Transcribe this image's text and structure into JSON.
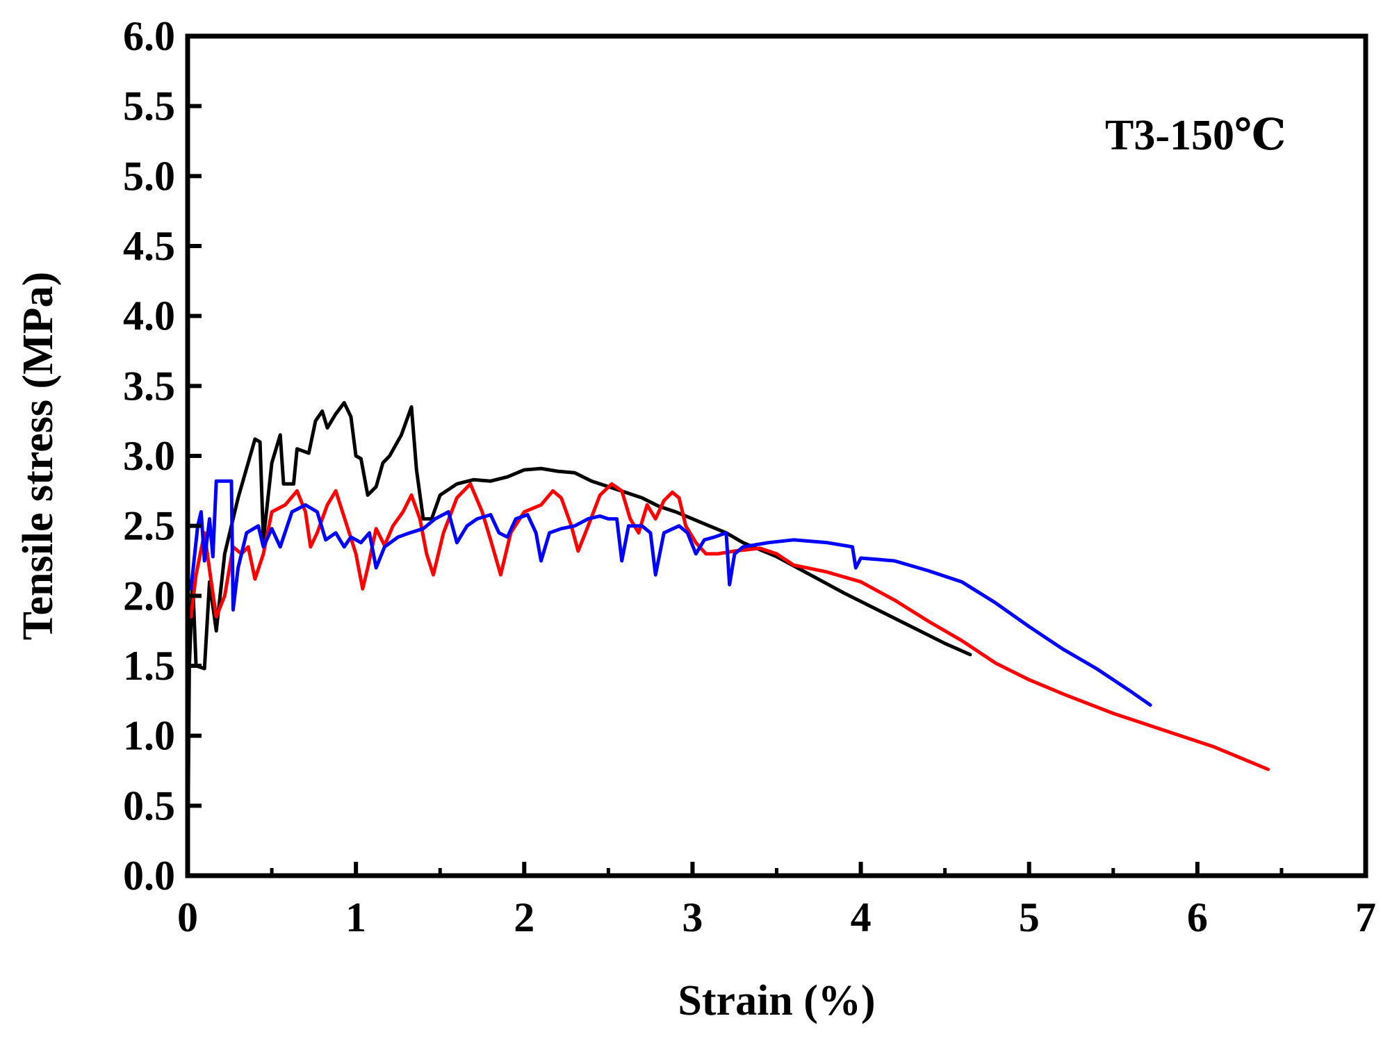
{
  "chart_data": {
    "type": "line",
    "title": "",
    "xlabel": "Strain (%)",
    "ylabel": "Tensile stress (MPa)",
    "annotation": "T3-150℃",
    "xlim": [
      0,
      7
    ],
    "ylim": [
      0,
      6
    ],
    "x_ticks": [
      "0",
      "1",
      "2",
      "3",
      "4",
      "5",
      "6",
      "7"
    ],
    "y_ticks": [
      "0.0",
      "0.5",
      "1.0",
      "1.5",
      "2.0",
      "2.5",
      "3.0",
      "3.5",
      "4.0",
      "4.5",
      "5.0",
      "5.5",
      "6.0"
    ],
    "grid": false,
    "legend": false,
    "series": [
      {
        "color": "#000000",
        "points": [
          [
            0,
            0
          ],
          [
            0.01,
            1.5
          ],
          [
            0.03,
            2.1
          ],
          [
            0.05,
            1.5
          ],
          [
            0.1,
            1.48
          ],
          [
            0.13,
            2.1
          ],
          [
            0.17,
            1.75
          ],
          [
            0.22,
            2.3
          ],
          [
            0.3,
            2.7
          ],
          [
            0.4,
            3.12
          ],
          [
            0.43,
            3.1
          ],
          [
            0.45,
            2.4
          ],
          [
            0.5,
            2.95
          ],
          [
            0.55,
            3.15
          ],
          [
            0.57,
            2.8
          ],
          [
            0.63,
            2.8
          ],
          [
            0.65,
            3.05
          ],
          [
            0.72,
            3.02
          ],
          [
            0.76,
            3.25
          ],
          [
            0.8,
            3.32
          ],
          [
            0.83,
            3.2
          ],
          [
            0.88,
            3.3
          ],
          [
            0.93,
            3.38
          ],
          [
            0.97,
            3.28
          ],
          [
            1.0,
            3.0
          ],
          [
            1.03,
            2.98
          ],
          [
            1.07,
            2.72
          ],
          [
            1.12,
            2.78
          ],
          [
            1.16,
            2.95
          ],
          [
            1.2,
            3.0
          ],
          [
            1.27,
            3.15
          ],
          [
            1.33,
            3.35
          ],
          [
            1.36,
            2.9
          ],
          [
            1.4,
            2.55
          ],
          [
            1.45,
            2.55
          ],
          [
            1.5,
            2.72
          ],
          [
            1.6,
            2.8
          ],
          [
            1.7,
            2.83
          ],
          [
            1.8,
            2.82
          ],
          [
            1.9,
            2.85
          ],
          [
            2.0,
            2.9
          ],
          [
            2.1,
            2.91
          ],
          [
            2.2,
            2.89
          ],
          [
            2.3,
            2.88
          ],
          [
            2.4,
            2.82
          ],
          [
            2.5,
            2.78
          ],
          [
            2.6,
            2.74
          ],
          [
            2.7,
            2.7
          ],
          [
            2.8,
            2.64
          ],
          [
            2.9,
            2.6
          ],
          [
            3.0,
            2.55
          ],
          [
            3.1,
            2.5
          ],
          [
            3.2,
            2.45
          ],
          [
            3.3,
            2.38
          ],
          [
            3.5,
            2.28
          ],
          [
            3.7,
            2.15
          ],
          [
            3.9,
            2.02
          ],
          [
            4.1,
            1.9
          ],
          [
            4.3,
            1.78
          ],
          [
            4.5,
            1.66
          ],
          [
            4.65,
            1.58
          ]
        ]
      },
      {
        "color": "#ff0000",
        "points": [
          [
            0.02,
            1.85
          ],
          [
            0.05,
            2.15
          ],
          [
            0.1,
            2.45
          ],
          [
            0.14,
            2.1
          ],
          [
            0.17,
            1.85
          ],
          [
            0.22,
            2.0
          ],
          [
            0.27,
            2.35
          ],
          [
            0.32,
            2.3
          ],
          [
            0.36,
            2.35
          ],
          [
            0.4,
            2.12
          ],
          [
            0.45,
            2.3
          ],
          [
            0.5,
            2.6
          ],
          [
            0.58,
            2.65
          ],
          [
            0.65,
            2.75
          ],
          [
            0.7,
            2.6
          ],
          [
            0.73,
            2.35
          ],
          [
            0.77,
            2.45
          ],
          [
            0.83,
            2.65
          ],
          [
            0.88,
            2.75
          ],
          [
            0.92,
            2.6
          ],
          [
            0.96,
            2.45
          ],
          [
            1.0,
            2.3
          ],
          [
            1.04,
            2.05
          ],
          [
            1.07,
            2.2
          ],
          [
            1.12,
            2.48
          ],
          [
            1.17,
            2.36
          ],
          [
            1.22,
            2.5
          ],
          [
            1.28,
            2.6
          ],
          [
            1.33,
            2.72
          ],
          [
            1.38,
            2.55
          ],
          [
            1.42,
            2.3
          ],
          [
            1.46,
            2.15
          ],
          [
            1.52,
            2.45
          ],
          [
            1.6,
            2.7
          ],
          [
            1.68,
            2.8
          ],
          [
            1.75,
            2.6
          ],
          [
            1.8,
            2.4
          ],
          [
            1.86,
            2.15
          ],
          [
            1.92,
            2.45
          ],
          [
            2.0,
            2.6
          ],
          [
            2.1,
            2.65
          ],
          [
            2.17,
            2.75
          ],
          [
            2.22,
            2.7
          ],
          [
            2.28,
            2.5
          ],
          [
            2.32,
            2.32
          ],
          [
            2.38,
            2.5
          ],
          [
            2.45,
            2.72
          ],
          [
            2.52,
            2.8
          ],
          [
            2.58,
            2.75
          ],
          [
            2.63,
            2.55
          ],
          [
            2.68,
            2.45
          ],
          [
            2.73,
            2.65
          ],
          [
            2.78,
            2.55
          ],
          [
            2.83,
            2.68
          ],
          [
            2.88,
            2.74
          ],
          [
            2.92,
            2.7
          ],
          [
            2.96,
            2.5
          ],
          [
            3.02,
            2.38
          ],
          [
            3.08,
            2.3
          ],
          [
            3.15,
            2.3
          ],
          [
            3.25,
            2.32
          ],
          [
            3.4,
            2.34
          ],
          [
            3.5,
            2.3
          ],
          [
            3.6,
            2.22
          ],
          [
            3.8,
            2.17
          ],
          [
            4.0,
            2.1
          ],
          [
            4.2,
            1.97
          ],
          [
            4.4,
            1.82
          ],
          [
            4.6,
            1.68
          ],
          [
            4.8,
            1.52
          ],
          [
            5.0,
            1.4
          ],
          [
            5.2,
            1.3
          ],
          [
            5.5,
            1.16
          ],
          [
            5.8,
            1.04
          ],
          [
            6.1,
            0.92
          ],
          [
            6.42,
            0.76
          ]
        ]
      },
      {
        "color": "#0000ff",
        "points": [
          [
            0.02,
            2.05
          ],
          [
            0.06,
            2.5
          ],
          [
            0.08,
            2.6
          ],
          [
            0.1,
            2.25
          ],
          [
            0.13,
            2.55
          ],
          [
            0.15,
            2.28
          ],
          [
            0.17,
            2.82
          ],
          [
            0.26,
            2.82
          ],
          [
            0.27,
            1.9
          ],
          [
            0.3,
            2.2
          ],
          [
            0.35,
            2.45
          ],
          [
            0.42,
            2.5
          ],
          [
            0.45,
            2.35
          ],
          [
            0.5,
            2.48
          ],
          [
            0.55,
            2.35
          ],
          [
            0.62,
            2.6
          ],
          [
            0.7,
            2.65
          ],
          [
            0.77,
            2.6
          ],
          [
            0.82,
            2.4
          ],
          [
            0.88,
            2.45
          ],
          [
            0.93,
            2.35
          ],
          [
            0.97,
            2.42
          ],
          [
            1.03,
            2.38
          ],
          [
            1.08,
            2.45
          ],
          [
            1.12,
            2.2
          ],
          [
            1.17,
            2.35
          ],
          [
            1.25,
            2.42
          ],
          [
            1.32,
            2.45
          ],
          [
            1.4,
            2.48
          ],
          [
            1.47,
            2.55
          ],
          [
            1.55,
            2.6
          ],
          [
            1.6,
            2.38
          ],
          [
            1.66,
            2.5
          ],
          [
            1.72,
            2.55
          ],
          [
            1.8,
            2.58
          ],
          [
            1.85,
            2.45
          ],
          [
            1.9,
            2.42
          ],
          [
            1.95,
            2.55
          ],
          [
            2.02,
            2.58
          ],
          [
            2.07,
            2.45
          ],
          [
            2.1,
            2.25
          ],
          [
            2.15,
            2.45
          ],
          [
            2.22,
            2.48
          ],
          [
            2.3,
            2.5
          ],
          [
            2.38,
            2.55
          ],
          [
            2.45,
            2.57
          ],
          [
            2.5,
            2.55
          ],
          [
            2.55,
            2.55
          ],
          [
            2.58,
            2.25
          ],
          [
            2.62,
            2.5
          ],
          [
            2.7,
            2.5
          ],
          [
            2.75,
            2.45
          ],
          [
            2.78,
            2.15
          ],
          [
            2.83,
            2.45
          ],
          [
            2.92,
            2.5
          ],
          [
            2.97,
            2.45
          ],
          [
            3.02,
            2.3
          ],
          [
            3.07,
            2.4
          ],
          [
            3.13,
            2.42
          ],
          [
            3.2,
            2.45
          ],
          [
            3.22,
            2.08
          ],
          [
            3.25,
            2.3
          ],
          [
            3.3,
            2.35
          ],
          [
            3.45,
            2.38
          ],
          [
            3.6,
            2.4
          ],
          [
            3.8,
            2.38
          ],
          [
            3.95,
            2.35
          ],
          [
            3.97,
            2.2
          ],
          [
            4.0,
            2.27
          ],
          [
            4.2,
            2.25
          ],
          [
            4.4,
            2.18
          ],
          [
            4.6,
            2.1
          ],
          [
            4.8,
            1.95
          ],
          [
            5.0,
            1.78
          ],
          [
            5.2,
            1.62
          ],
          [
            5.4,
            1.48
          ],
          [
            5.6,
            1.32
          ],
          [
            5.72,
            1.22
          ]
        ]
      }
    ]
  }
}
